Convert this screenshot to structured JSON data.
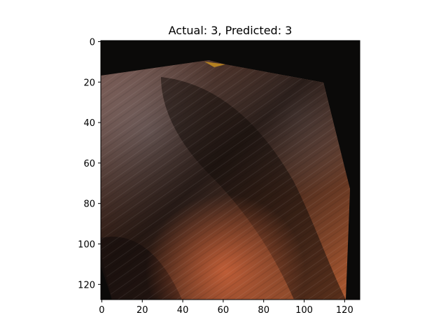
{
  "figure": {
    "title": "Actual: 3, Predicted: 3",
    "x_axis": {
      "ticks": [
        0,
        20,
        40,
        60,
        80,
        100,
        120
      ],
      "range": [
        -0.5,
        127.5
      ]
    },
    "y_axis": {
      "ticks": [
        0,
        20,
        40,
        60,
        80,
        100,
        120
      ],
      "range": [
        -0.5,
        127.5
      ],
      "inverted": true
    },
    "image": {
      "size": [
        128,
        128
      ],
      "background_color": "#0b0a09",
      "dominant_colors": [
        "#2a1a14",
        "#5a4038",
        "#a48272",
        "#b05a30"
      ]
    }
  }
}
